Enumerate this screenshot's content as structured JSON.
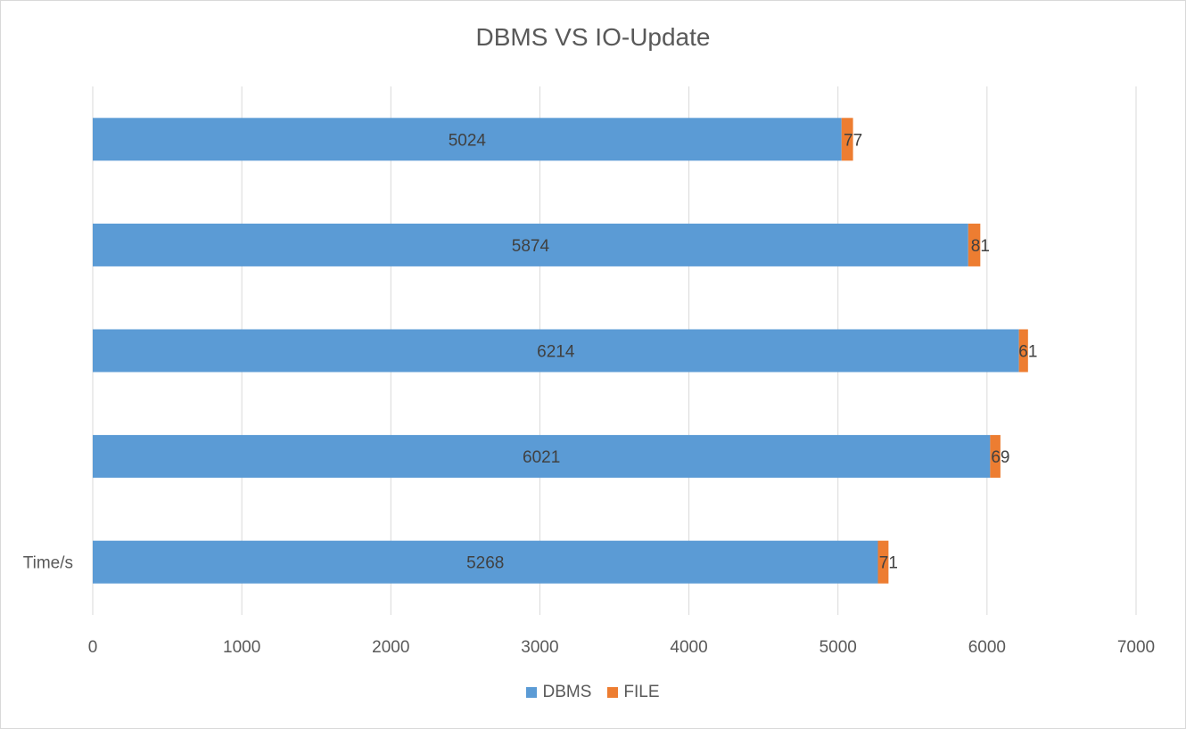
{
  "chart_data": {
    "type": "bar",
    "orientation": "horizontal",
    "stacked": true,
    "title": "DBMS VS IO-Update",
    "categories": [
      "Time/s",
      "",
      "",
      "",
      ""
    ],
    "series": [
      {
        "name": "DBMS",
        "color": "#5b9bd5",
        "values": [
          5268,
          6021,
          6214,
          5874,
          5024
        ]
      },
      {
        "name": "FILE",
        "color": "#ed7d31",
        "values": [
          71,
          69,
          61,
          81,
          77
        ]
      }
    ],
    "xlim": [
      0,
      7000
    ],
    "xticks": [
      0,
      1000,
      2000,
      3000,
      4000,
      5000,
      6000,
      7000
    ],
    "grid": "vertical",
    "legend_position": "bottom",
    "data_labels": true
  }
}
